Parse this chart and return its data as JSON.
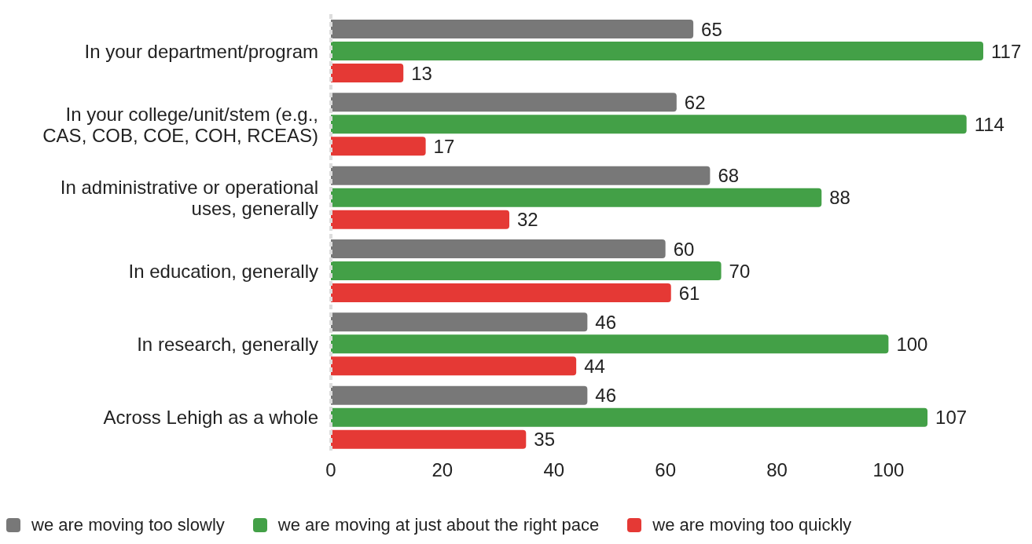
{
  "chart_data": {
    "type": "bar",
    "orientation": "horizontal",
    "categories": [
      "In your department/program",
      "In your college/unit/stem (e.g., CAS, COB, COE, COH, RCEAS)",
      "In administrative or operational uses, generally",
      "In education, generally",
      "In research, generally",
      "Across Lehigh as a whole"
    ],
    "series": [
      {
        "name": "we are moving too slowly",
        "color": "#787878",
        "values": [
          65,
          62,
          68,
          60,
          46,
          46
        ]
      },
      {
        "name": "we are moving at just about the right pace",
        "color": "#43a047",
        "values": [
          117,
          114,
          88,
          70,
          100,
          107
        ]
      },
      {
        "name": "we are moving too quickly",
        "color": "#e53935",
        "values": [
          13,
          17,
          32,
          61,
          44,
          35
        ]
      }
    ],
    "xlim": [
      0,
      117
    ],
    "xticks": [
      0,
      20,
      40,
      60,
      80,
      100
    ],
    "data_labels": true,
    "grid": false,
    "legend": "bottom left"
  }
}
